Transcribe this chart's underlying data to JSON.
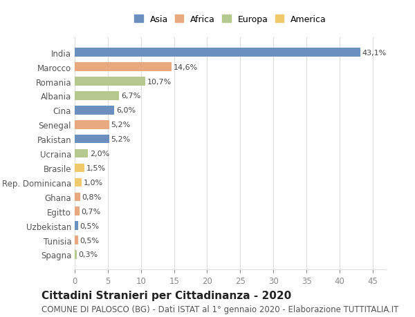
{
  "countries": [
    "India",
    "Marocco",
    "Romania",
    "Albania",
    "Cina",
    "Senegal",
    "Pakistan",
    "Ucraina",
    "Brasile",
    "Rep. Dominicana",
    "Ghana",
    "Egitto",
    "Uzbekistan",
    "Tunisia",
    "Spagna"
  ],
  "values": [
    43.1,
    14.6,
    10.7,
    6.7,
    6.0,
    5.2,
    5.2,
    2.0,
    1.5,
    1.0,
    0.8,
    0.7,
    0.5,
    0.5,
    0.3
  ],
  "labels": [
    "43,1%",
    "14,6%",
    "10,7%",
    "6,7%",
    "6,0%",
    "5,2%",
    "5,2%",
    "2,0%",
    "1,5%",
    "1,0%",
    "0,8%",
    "0,7%",
    "0,5%",
    "0,5%",
    "0,3%"
  ],
  "continents": [
    "Asia",
    "Africa",
    "Europa",
    "Europa",
    "Asia",
    "Africa",
    "Asia",
    "Europa",
    "America",
    "America",
    "Africa",
    "Africa",
    "Asia",
    "Africa",
    "Europa"
  ],
  "colors": {
    "Asia": "#6b8fbf",
    "Africa": "#e8a97e",
    "Europa": "#b5c98e",
    "America": "#f0c96b"
  },
  "legend_order": [
    "Asia",
    "Africa",
    "Europa",
    "America"
  ],
  "title": "Cittadini Stranieri per Cittadinanza - 2020",
  "subtitle": "COMUNE DI PALOSCO (BG) - Dati ISTAT al 1° gennaio 2020 - Elaborazione TUTTITALIA.IT",
  "xlim": [
    0,
    47
  ],
  "xticks": [
    0,
    5,
    10,
    15,
    20,
    25,
    30,
    35,
    40,
    45
  ],
  "background_color": "#ffffff",
  "grid_color": "#dddddd",
  "title_fontsize": 11,
  "subtitle_fontsize": 8.5,
  "bar_label_fontsize": 8,
  "tick_label_fontsize": 8.5,
  "legend_fontsize": 9
}
